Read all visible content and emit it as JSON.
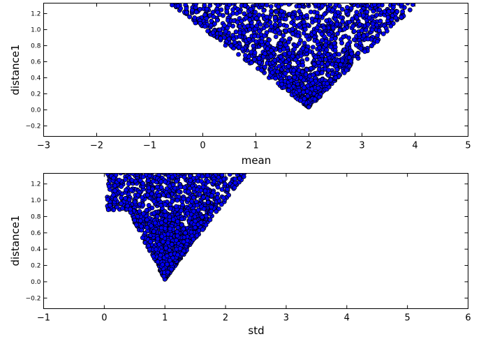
{
  "chart_data": [
    {
      "type": "scatter",
      "xlabel": "mean",
      "ylabel": "distance1",
      "xlim": [
        -3,
        5
      ],
      "ylim": [
        -0.33,
        1.33
      ],
      "xticks": [
        "−3",
        "−2",
        "−1",
        "0",
        "1",
        "2",
        "3",
        "4",
        "5"
      ],
      "yticks": [
        "−0.2",
        "0.0",
        "0.2",
        "0.4",
        "0.6",
        "0.8",
        "1.0",
        "1.2"
      ],
      "grid": false,
      "marker_color": "#0000ff",
      "marker_edge": "#000000",
      "description_of_points": "about 1500 points forming a V shape with apex near mean=2, distance1=0.03; left edge from (-0.6, 1.33) to (2.0, 0.03); right edge from (2.0, 0.03) to (4.0, 1.33)",
      "point_envelope": {
        "apex": [
          2.0,
          0.03
        ],
        "left_top": [
          -0.65,
          1.33
        ],
        "right_top": [
          4.05,
          1.33
        ]
      },
      "n_points": 1500
    },
    {
      "type": "scatter",
      "xlabel": "std",
      "ylabel": "distance1",
      "xlim": [
        -1,
        6
      ],
      "ylim": [
        -0.33,
        1.33
      ],
      "xticks": [
        "−1",
        "0",
        "1",
        "2",
        "3",
        "4",
        "5",
        "6"
      ],
      "yticks": [
        "−0.2",
        "0.0",
        "0.2",
        "0.4",
        "0.6",
        "0.8",
        "1.0",
        "1.2"
      ],
      "grid": false,
      "marker_color": "#0000ff",
      "marker_edge": "#000000",
      "point_envelope": {
        "apex": [
          1.0,
          0.03
        ],
        "left_top": [
          0.05,
          1.33
        ],
        "right_top": [
          2.35,
          1.33
        ],
        "left_bottom_edge": [
          0.05,
          0.88
        ]
      },
      "n_points": 1500
    }
  ]
}
